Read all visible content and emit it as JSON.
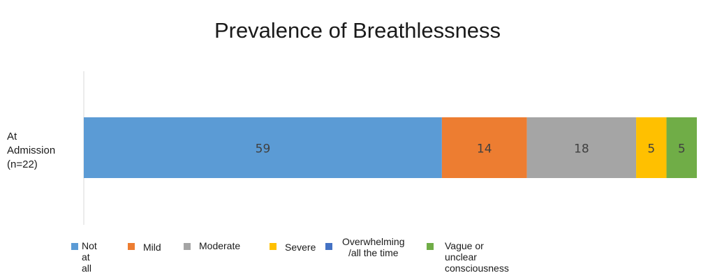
{
  "chart_data": {
    "type": "bar",
    "orientation": "horizontal",
    "stacked": true,
    "title": "Prevalence of Breathlessness",
    "categories": [
      "At\nAdmission\n(n=22)"
    ],
    "series": [
      {
        "name": "Not at all",
        "values": [
          59
        ],
        "color": "#5B9BD5"
      },
      {
        "name": "Mild",
        "values": [
          14
        ],
        "color": "#ED7D31"
      },
      {
        "name": "Moderate",
        "values": [
          18
        ],
        "color": "#A5A5A5"
      },
      {
        "name": "Severe",
        "values": [
          5
        ],
        "color": "#FFC000"
      },
      {
        "name": "Overwhelming\n/all the time",
        "values": [
          0
        ],
        "color": "#4472C4"
      },
      {
        "name": "Vague or unclear consciousness",
        "values": [
          5
        ],
        "color": "#70AD47"
      }
    ],
    "data_labels": [
      "59",
      "14",
      "18",
      "5",
      "",
      "5"
    ],
    "legend_position": "bottom",
    "grid": false
  }
}
